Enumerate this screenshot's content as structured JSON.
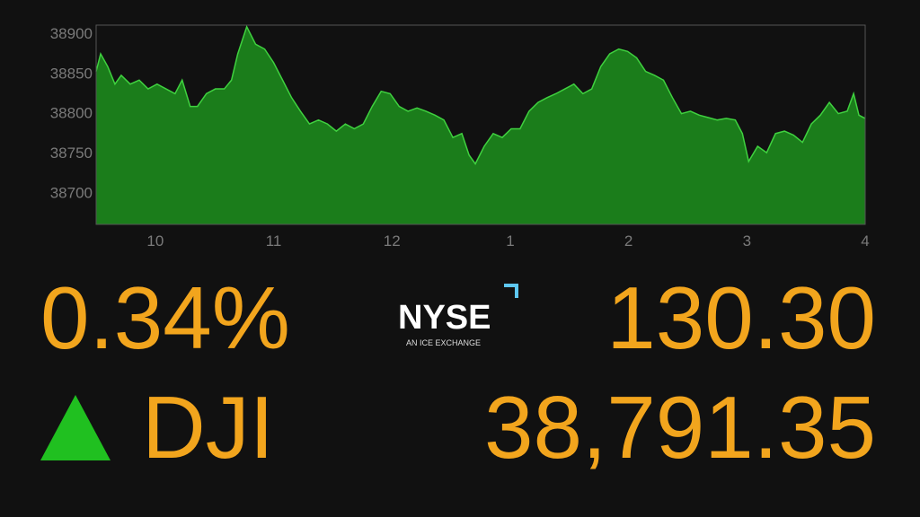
{
  "chart_data": {
    "type": "area",
    "x": [
      9.5,
      9.538,
      9.598,
      9.659,
      9.712,
      9.788,
      9.864,
      9.939,
      10.015,
      10.091,
      10.167,
      10.227,
      10.295,
      10.356,
      10.432,
      10.508,
      10.583,
      10.644,
      10.697,
      10.773,
      10.848,
      10.924,
      11,
      11.076,
      11.152,
      11.227,
      11.303,
      11.379,
      11.455,
      11.53,
      11.606,
      11.682,
      11.758,
      11.833,
      11.909,
      11.985,
      12.061,
      12.136,
      12.212,
      12.288,
      12.364,
      12.439,
      12.515,
      12.591,
      12.652,
      12.705,
      12.78,
      12.856,
      12.932,
      13.008,
      13.083,
      13.159,
      13.235,
      13.311,
      13.386,
      13.462,
      13.538,
      13.614,
      13.689,
      13.765,
      13.841,
      13.917,
      13.992,
      14.068,
      14.144,
      14.22,
      14.295,
      14.371,
      14.447,
      14.523,
      14.598,
      14.674,
      14.75,
      14.826,
      14.902,
      14.962,
      15.015,
      15.091,
      15.167,
      15.242,
      15.318,
      15.394,
      15.47,
      15.545,
      15.621,
      15.697,
      15.773,
      15.848,
      15.902,
      15.947,
      16
    ],
    "values": [
      38852,
      38874,
      38858,
      38836,
      38847,
      38836,
      38841,
      38830,
      38836,
      38830,
      38824,
      38841,
      38808,
      38808,
      38824,
      38830,
      38830,
      38841,
      38874,
      38908,
      38886,
      38880,
      38863,
      38841,
      38819,
      38802,
      38786,
      38791,
      38786,
      38777,
      38786,
      38780,
      38786,
      38808,
      38827,
      38824,
      38808,
      38802,
      38806,
      38802,
      38797,
      38791,
      38769,
      38774,
      38747,
      38736,
      38758,
      38774,
      38769,
      38780,
      38780,
      38802,
      38813,
      38819,
      38824,
      38830,
      38836,
      38824,
      38830,
      38858,
      38874,
      38880,
      38877,
      38869,
      38852,
      38847,
      38841,
      38819,
      38799,
      38802,
      38797,
      38794,
      38791,
      38793,
      38791,
      38774,
      38739,
      38758,
      38750,
      38774,
      38777,
      38772,
      38763,
      38786,
      38797,
      38813,
      38799,
      38802,
      38824,
      38797,
      38793
    ],
    "line_color": "#3fd13f",
    "fill_color": "#1b7d1b",
    "xlim": [
      9.5,
      16
    ],
    "xticks": [
      10,
      11,
      12,
      {
        "value": 13,
        "label": "1"
      },
      {
        "value": 14,
        "label": "2"
      },
      {
        "value": 15,
        "label": "3"
      },
      {
        "value": 16,
        "label": "4"
      }
    ],
    "ylim": [
      38660,
      38910
    ],
    "yticks": [
      38700,
      38750,
      38800,
      38850,
      38900
    ],
    "grid": false
  },
  "quote": {
    "change_percent": "0.34%",
    "symbol": "DJI",
    "change": "130.30",
    "price": "38,791.35"
  },
  "logo": {
    "name": "NYSE",
    "tagline": "AN ICE EXCHANGE"
  }
}
